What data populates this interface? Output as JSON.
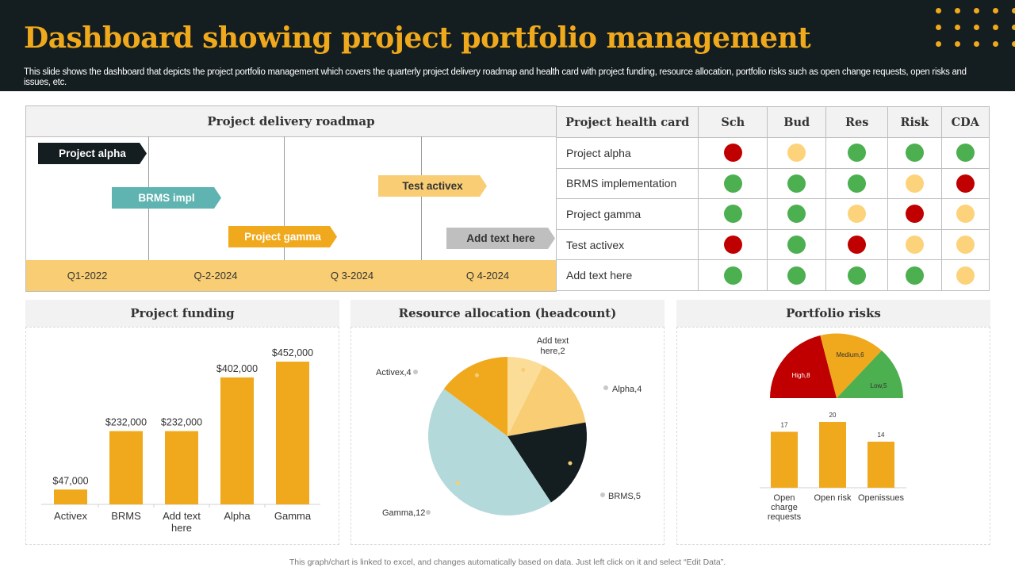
{
  "header": {
    "title": "Dashboard showing project portfolio management",
    "subtitle": "This slide shows the dashboard that depicts the project portfolio management which covers the quarterly project delivery roadmap and health card with project funding, resource allocation, portfolio risks such as open change requests, open risks and issues, etc."
  },
  "roadmap": {
    "title": "Project delivery roadmap",
    "quarters": [
      "Q1-2022",
      "Q-2-2024",
      "Q 3-2024",
      "Q 4-2024"
    ],
    "tasks": [
      {
        "label": "Project alpha",
        "color": "#141d1f"
      },
      {
        "label": "BRMS impl",
        "color": "#5fb3b0"
      },
      {
        "label": "Test activex",
        "color": "#f8cd74"
      },
      {
        "label": "Project gamma",
        "color": "#f0a91c"
      },
      {
        "label": "Add text here",
        "color": "#bfbfbf"
      }
    ]
  },
  "health_card": {
    "title": "Project health card",
    "columns": [
      "Sch",
      "Bud",
      "Res",
      "Risk",
      "CDA"
    ],
    "status_colors": {
      "red": "#c00000",
      "amber": "#fcd37a",
      "green": "#4caf50"
    },
    "rows": [
      {
        "name": "Project alpha",
        "status": [
          "red",
          "amber",
          "green",
          "green",
          "green"
        ]
      },
      {
        "name": "BRMS implementation",
        "status": [
          "green",
          "green",
          "green",
          "amber",
          "red"
        ]
      },
      {
        "name": "Project gamma",
        "status": [
          "green",
          "green",
          "amber",
          "red",
          "amber"
        ]
      },
      {
        "name": "Test activex",
        "status": [
          "red",
          "green",
          "red",
          "amber",
          "amber"
        ]
      },
      {
        "name": "Add text here",
        "status": [
          "green",
          "green",
          "green",
          "green",
          "amber"
        ]
      }
    ]
  },
  "panels": {
    "funding_title": "Project funding",
    "resource_title": "Resource allocation (headcount)",
    "risks_title": "Portfolio risks"
  },
  "chart_data": [
    {
      "type": "bar",
      "title": "Project funding",
      "categories": [
        "Activex",
        "BRMS",
        "Add text here",
        "Alpha",
        "Gamma"
      ],
      "values": [
        47000,
        232000,
        232000,
        402000,
        452000
      ],
      "value_labels": [
        "$47,000",
        "$232,000",
        "$232,000",
        "$402,000",
        "$452,000"
      ],
      "color": "#f0a91c"
    },
    {
      "type": "pie",
      "title": "Resource allocation (headcount)",
      "slices": [
        {
          "label": "Add text here,2",
          "value": 2,
          "color": "#fcdd98"
        },
        {
          "label": "Alpha,4",
          "value": 4,
          "color": "#f8cd74"
        },
        {
          "label": "BRMS,5",
          "value": 5,
          "color": "#141d1f"
        },
        {
          "label": "Gamma,12",
          "value": 12,
          "color": "#b4d9da"
        },
        {
          "label": "Activex,4",
          "value": 4,
          "color": "#f0a91c"
        }
      ]
    },
    {
      "type": "pie",
      "title": "Portfolio risks gauge",
      "slices": [
        {
          "label": "High,8",
          "value": 8,
          "color": "#c00000"
        },
        {
          "label": "Medium,6",
          "value": 6,
          "color": "#f0a91c"
        },
        {
          "label": "Low,5",
          "value": 5,
          "color": "#4caf50"
        }
      ]
    },
    {
      "type": "bar",
      "title": "Portfolio risks",
      "categories": [
        "Open change requests",
        "Open risk",
        "Openissues"
      ],
      "values": [
        17,
        20,
        14
      ],
      "color": "#f0a91c"
    }
  ],
  "footer": "This graph/chart is linked to excel, and changes automatically based on data. Just left click on it and select “Edit Data”."
}
